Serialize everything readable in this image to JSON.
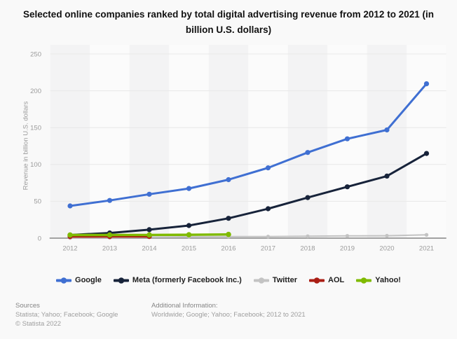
{
  "title": "Selected online companies ranked by total digital advertising revenue from 2012 to 2021 (in billion U.S. dollars)",
  "chart_data": {
    "type": "line",
    "title": "Selected online companies ranked by total digital advertising revenue from 2012 to 2021 (in billion U.S. dollars)",
    "categories": [
      "2012",
      "2013",
      "2014",
      "2015",
      "2016",
      "2017",
      "2018",
      "2019",
      "2020",
      "2021"
    ],
    "xlabel": "",
    "ylabel": "Revenue in billion U.S. dollars",
    "ylim": [
      0,
      250
    ],
    "yticks": [
      0,
      50,
      100,
      150,
      200,
      250
    ],
    "grid": "horizontal",
    "legend_position": "bottom",
    "series": [
      {
        "name": "Google",
        "color": "#3f6fd2",
        "values": [
          43.7,
          51.1,
          59.6,
          67.4,
          79.4,
          95.4,
          116.3,
          134.8,
          146.9,
          209.5
        ]
      },
      {
        "name": "Meta (formerly Facebook Inc.)",
        "color": "#17233a",
        "values": [
          4.3,
          7.0,
          11.5,
          17.1,
          26.9,
          39.9,
          55.0,
          69.7,
          84.2,
          114.9
        ]
      },
      {
        "name": "Twitter",
        "color": "#c3c3c3",
        "values": [
          0.3,
          0.6,
          1.3,
          2.0,
          2.2,
          2.1,
          2.6,
          3.0,
          3.2,
          4.5
        ]
      },
      {
        "name": "AOL",
        "color": "#aa1e14",
        "values": [
          2.1,
          2.2,
          2.3,
          null,
          null,
          null,
          null,
          null,
          null,
          null
        ]
      },
      {
        "name": "Yahoo!",
        "color": "#7fba00",
        "values": [
          4.3,
          4.3,
          4.4,
          4.6,
          5.0,
          null,
          null,
          null,
          null,
          null
        ]
      }
    ]
  },
  "colors": {
    "background": "#f9f9f9",
    "band_dark": "#f3f3f4",
    "band_light": "#fbfbfb",
    "gridline": "#e8e8e8",
    "axis_line": "#969696",
    "tick_label": "#9b9b9b"
  },
  "footer": {
    "sources_label": "Sources",
    "sources": "Statista; Yahoo; Facebook; Google",
    "copyright": "© Statista 2022",
    "additional_label": "Additional Information:",
    "additional": "Worldwide; Google; Yahoo; Facebook; 2012 to 2021"
  }
}
